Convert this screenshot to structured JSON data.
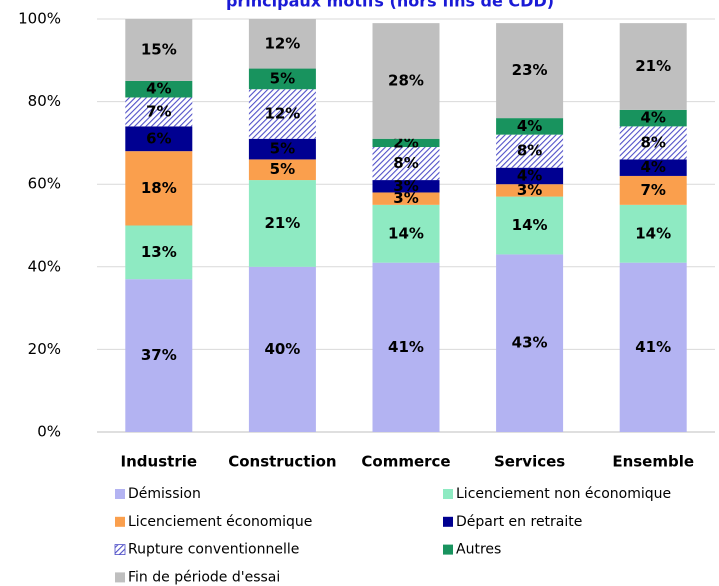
{
  "chart_data": {
    "type": "stacked_bar",
    "title": "principaux motifs (hors fins de CDD)",
    "categories": [
      "Industrie",
      "Construction",
      "Commerce",
      "Services",
      "Ensemble"
    ],
    "series": [
      {
        "name": "Démission",
        "color": "#b3b3f2",
        "values": [
          37,
          40,
          41,
          43,
          41
        ],
        "value_labels": [
          "37%",
          "40%",
          "41%",
          "43%",
          "41%"
        ]
      },
      {
        "name": "Licenciement non économique",
        "color": "#8eeac2",
        "values": [
          13,
          21,
          14,
          14,
          14
        ],
        "value_labels": [
          "13%",
          "21%",
          "14%",
          "14%",
          "14%"
        ]
      },
      {
        "name": "Licenciement économique",
        "color": "#fa9f4d",
        "values": [
          18,
          5,
          3,
          3,
          7
        ],
        "value_labels": [
          "18%",
          "5%",
          "3%",
          "3%",
          "7%"
        ]
      },
      {
        "name": "Départ en retraite",
        "color": "#000091",
        "values": [
          6,
          5,
          3,
          4,
          4
        ],
        "value_labels": [
          "6%",
          "5%",
          "3%",
          "4%",
          "4%"
        ]
      },
      {
        "name": "Rupture conventionnelle",
        "color": "#5050c8",
        "pattern": "hatch",
        "values": [
          7,
          12,
          8,
          8,
          8
        ],
        "value_labels": [
          "7%",
          "12%",
          "8%",
          "8%",
          "8%"
        ]
      },
      {
        "name": "Autres",
        "color": "#18935e",
        "values": [
          4,
          5,
          2,
          4,
          4
        ],
        "value_labels": [
          "4%",
          "5%",
          "2%",
          "4%",
          "4%"
        ]
      },
      {
        "name": "Fin de période d'essai",
        "color": "#bfbfbf",
        "values": [
          15,
          12,
          28,
          23,
          21
        ],
        "value_labels": [
          "15%",
          "12%",
          "28%",
          "23%",
          "21%"
        ]
      }
    ],
    "ylim": [
      0,
      100
    ],
    "yticks": [
      {
        "value": 0,
        "label": "0%"
      },
      {
        "value": 20,
        "label": "20%"
      },
      {
        "value": 40,
        "label": "40%"
      },
      {
        "value": 60,
        "label": "60%"
      },
      {
        "value": 80,
        "label": "80%"
      },
      {
        "value": 100,
        "label": "100%"
      }
    ],
    "grid": true
  }
}
